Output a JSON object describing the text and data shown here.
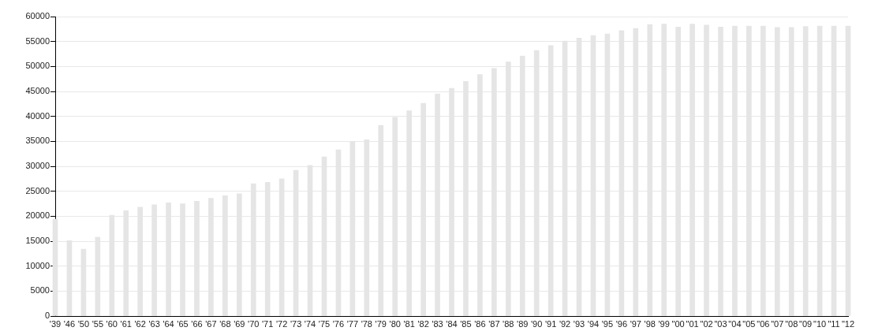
{
  "chart_data": {
    "type": "bar",
    "categories": [
      "'39",
      "'46",
      "'50",
      "'55",
      "'60",
      "'61",
      "'62",
      "'63",
      "'64",
      "'65",
      "'66",
      "'67",
      "'68",
      "'69",
      "'70",
      "'71",
      "'72",
      "'73",
      "'74",
      "'75",
      "'76",
      "'77",
      "'78",
      "'79",
      "'80",
      "'81",
      "'82",
      "'83",
      "'84",
      "'85",
      "'86",
      "'87",
      "'88",
      "'89",
      "'90",
      "'91",
      "'92",
      "'93",
      "'94",
      "'95",
      "'96",
      "'97",
      "'98",
      "'99",
      "\"00",
      "\"01",
      "\"02",
      "\"03",
      "\"04",
      "\"05",
      "\"06",
      "\"07",
      "\"08",
      "\"09",
      "\"10",
      "\"11",
      "\"12"
    ],
    "values": [
      19400,
      15100,
      13400,
      15800,
      20200,
      21100,
      21800,
      22300,
      22700,
      22500,
      23000,
      23600,
      24100,
      24500,
      26500,
      26800,
      27500,
      29200,
      30200,
      31900,
      33300,
      35000,
      35300,
      38200,
      39800,
      41100,
      42600,
      44500,
      45600,
      47000,
      48400,
      49600,
      50900,
      52100,
      53200,
      54200,
      55100,
      55700,
      56200,
      56500,
      57200,
      57600,
      58400,
      58500,
      57900,
      58500,
      58300,
      57900,
      58100,
      58100,
      58100,
      57800,
      57800,
      58000,
      58100,
      58100,
      58100
    ],
    "color": "#e5e5e5",
    "ylim": [
      0,
      60000
    ],
    "yticks": [
      0,
      5000,
      10000,
      15000,
      20000,
      25000,
      30000,
      35000,
      40000,
      45000,
      50000,
      55000,
      60000
    ],
    "grid": "y"
  }
}
